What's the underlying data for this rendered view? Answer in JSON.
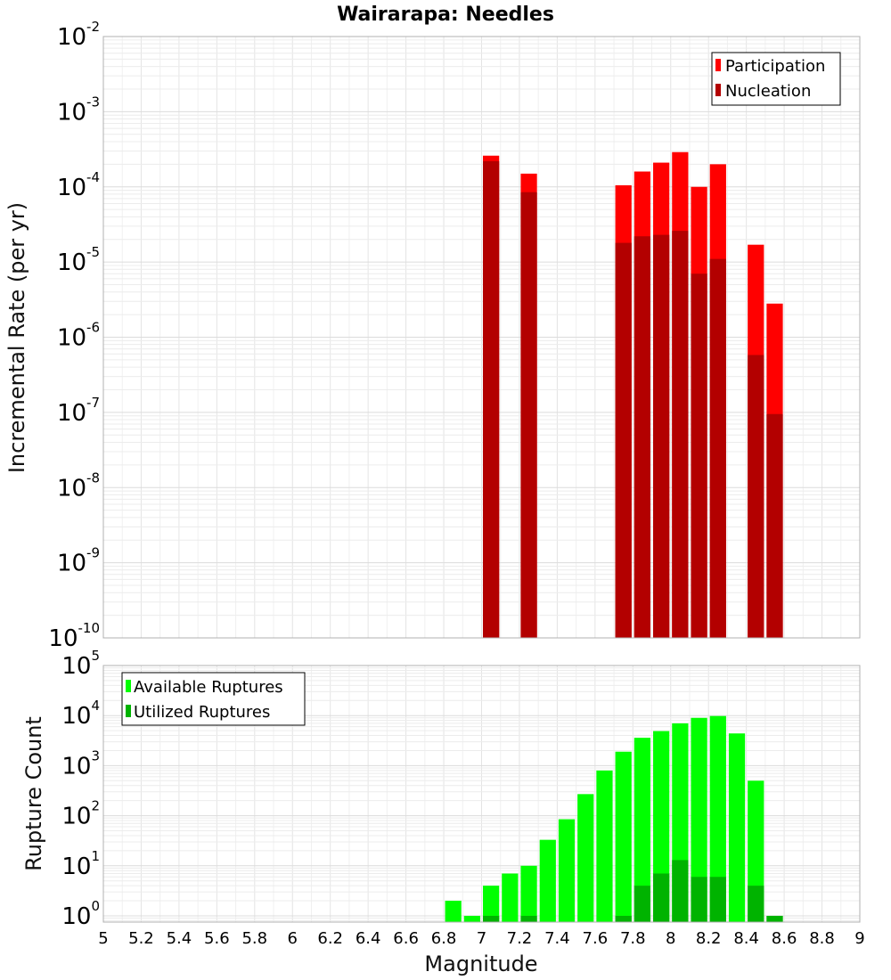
{
  "chart_data": [
    {
      "type": "bar",
      "title": "Wairarapa: Needles",
      "ylabel": "Incremental Rate (per yr)",
      "xlabel": "",
      "yscale": "log",
      "xlim": [
        5,
        9
      ],
      "ylim": [
        1e-10,
        0.01
      ],
      "ytick_exponents": [
        -10,
        -9,
        -8,
        -7,
        -6,
        -5,
        -4,
        -3,
        -2
      ],
      "legend_position": "top-right",
      "grid": true,
      "bin_width": 0.1,
      "x": [
        7.05,
        7.25,
        7.75,
        7.85,
        7.95,
        8.05,
        8.15,
        8.25,
        8.45,
        8.55
      ],
      "series": [
        {
          "name": "Participation",
          "color": "#ff0000",
          "values": [
            0.00026,
            0.00015,
            0.000105,
            0.00016,
            0.00021,
            0.00029,
            0.0001,
            0.0002,
            1.7e-05,
            2.8e-06
          ]
        },
        {
          "name": "Nucleation",
          "color": "#b30000",
          "values": [
            0.00022,
            8.5e-05,
            1.8e-05,
            2.2e-05,
            2.3e-05,
            2.6e-05,
            7e-06,
            1.1e-05,
            5.8e-07,
            9.5e-08
          ]
        }
      ]
    },
    {
      "type": "bar",
      "title": "",
      "ylabel": "Rupture Count",
      "xlabel": "Magnitude",
      "yscale": "log",
      "xlim": [
        5,
        9
      ],
      "ylim": [
        0.75,
        100000.0
      ],
      "ytick_exponents": [
        0,
        1,
        2,
        3,
        4,
        5
      ],
      "xticks": [
        "5",
        "5.2",
        "5.4",
        "5.6",
        "5.8",
        "6",
        "6.2",
        "6.4",
        "6.6",
        "6.8",
        "7",
        "7.2",
        "7.4",
        "7.6",
        "7.8",
        "8",
        "8.2",
        "8.4",
        "8.6",
        "8.8",
        "9"
      ],
      "legend_position": "top-left",
      "grid": true,
      "bin_width": 0.1,
      "series": [
        {
          "name": "Available Ruptures",
          "color": "#00ff00",
          "x": [
            6.85,
            6.95,
            7.05,
            7.15,
            7.25,
            7.35,
            7.45,
            7.55,
            7.65,
            7.75,
            7.85,
            7.95,
            8.05,
            8.15,
            8.25,
            8.35,
            8.45,
            8.55
          ],
          "values": [
            2,
            1,
            4,
            7,
            10,
            33,
            85,
            270,
            800,
            1900,
            3600,
            4900,
            7000,
            9000,
            9800,
            4400,
            500,
            1
          ]
        },
        {
          "name": "Utilized Ruptures",
          "color": "#00b300",
          "x": [
            7.05,
            7.25,
            7.75,
            7.85,
            7.95,
            8.05,
            8.15,
            8.25,
            8.45,
            8.55
          ],
          "values": [
            1,
            1,
            1,
            4,
            7,
            13,
            6,
            6,
            4,
            1
          ]
        }
      ]
    }
  ]
}
